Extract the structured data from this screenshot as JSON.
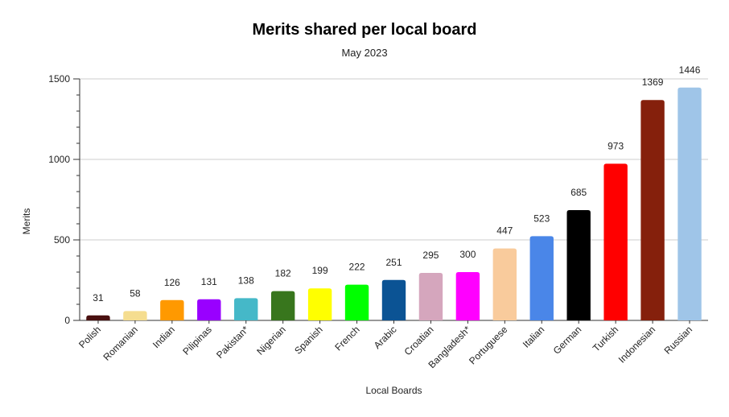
{
  "chart_data": {
    "type": "bar",
    "title": "Merits shared per local board",
    "subtitle": "May 2023",
    "xlabel": "Local Boards",
    "ylabel": "Merits",
    "ylim": [
      0,
      1500
    ],
    "yticks": [
      "0",
      "500",
      "1000",
      "1500"
    ],
    "grid": true,
    "categories": [
      "Polish",
      "Romanian",
      "Indian",
      "Pilipinas",
      "Pakistan*",
      "Nigerian",
      "Spanish",
      "French",
      "Arabic",
      "Croatian",
      "Bangladesh*",
      "Portuguese",
      "Italian",
      "German",
      "Turkish",
      "Indonesian",
      "Russian"
    ],
    "values": [
      31,
      58,
      126,
      131,
      138,
      182,
      199,
      222,
      251,
      295,
      300,
      447,
      523,
      685,
      973,
      1369,
      1446
    ],
    "colors": [
      "#4a1010",
      "#f5dd8f",
      "#ff9900",
      "#9900ff",
      "#45b8c8",
      "#38761d",
      "#ffff00",
      "#00ff00",
      "#0b5394",
      "#d5a6bd",
      "#ff00ff",
      "#f9cb9c",
      "#4a86e8",
      "#000000",
      "#ff0000",
      "#85200c",
      "#9fc5e8"
    ]
  }
}
